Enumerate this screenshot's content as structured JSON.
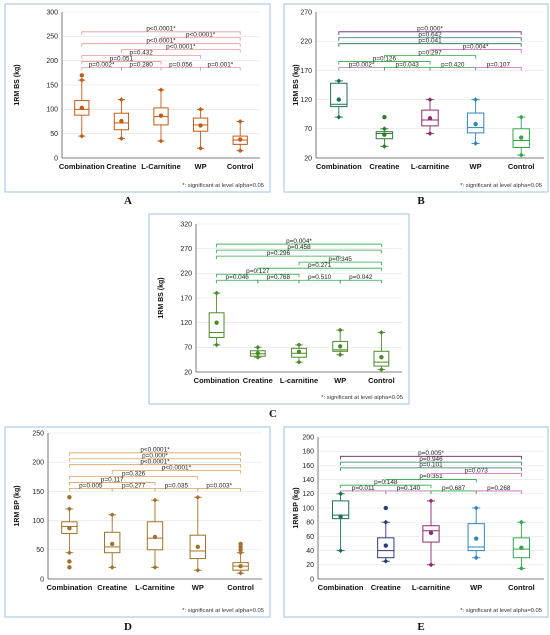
{
  "footnote": "*: significant at level alpha=0.05",
  "chart_data": [
    {
      "panel": "A",
      "type": "boxplot",
      "color": "#c55a11",
      "ylabel": "1RM BS (kg)",
      "ylim": [
        0,
        300
      ],
      "yticks": [
        0,
        50,
        100,
        150,
        200,
        250,
        300
      ],
      "grid": true,
      "categories": [
        "Combination",
        "Creatine",
        "L-Carnitine",
        "WP",
        "Control"
      ],
      "boxes": [
        {
          "min": 45,
          "q1": 88,
          "median": 100,
          "q3": 118,
          "max": 160,
          "mean": 103,
          "outliers": [
            170
          ]
        },
        {
          "min": 40,
          "q1": 58,
          "median": 72,
          "q3": 92,
          "max": 120,
          "mean": 76,
          "outliers": []
        },
        {
          "min": 35,
          "q1": 68,
          "median": 85,
          "q3": 103,
          "max": 140,
          "mean": 87,
          "outliers": []
        },
        {
          "min": 20,
          "q1": 55,
          "median": 68,
          "q3": 82,
          "max": 100,
          "mean": 67,
          "outliers": []
        },
        {
          "min": 15,
          "q1": 28,
          "median": 37,
          "q3": 45,
          "max": 75,
          "mean": 38,
          "outliers": []
        }
      ],
      "comparisons": [
        {
          "from": 0,
          "to": 1,
          "label": "p=0.002*",
          "color": "#e39a9a"
        },
        {
          "from": 1,
          "to": 2,
          "label": "p=0.280",
          "color": "#e39a9a"
        },
        {
          "from": 2,
          "to": 3,
          "label": "p=0.056",
          "color": "#e39a9a"
        },
        {
          "from": 3,
          "to": 4,
          "label": "p=0.001*",
          "color": "#e39a9a"
        },
        {
          "from": 0,
          "to": 2,
          "label": "p=0.051",
          "color": "#e39a9a"
        },
        {
          "from": 0,
          "to": 3,
          "label": "p=0.432",
          "color": "#e39a9a"
        },
        {
          "from": 1,
          "to": 4,
          "label": "p<0.0001*",
          "color": "#e39a9a"
        },
        {
          "from": 0,
          "to": 4,
          "label": "p<0.0001*",
          "color": "#e39a9a"
        },
        {
          "from": 2,
          "to": 4,
          "label": "p<0.0001*",
          "color": "#e39a9a"
        },
        {
          "from": 0,
          "to": 4,
          "label": "p<0.0001*",
          "color": "#e39a9a"
        }
      ]
    },
    {
      "panel": "B",
      "type": "boxplot",
      "ylabel": "1RM BS (kg)",
      "ylim": [
        20,
        270
      ],
      "yticks": [
        20,
        70,
        120,
        170,
        220,
        270
      ],
      "grid": true,
      "categories": [
        "Combination",
        "Creatine",
        "L-carnitine",
        "WP",
        "Control"
      ],
      "colors": [
        "#1f6f5c",
        "#2e7d32",
        "#8e2a6e",
        "#2e86c1",
        "#2ea84a"
      ],
      "boxes": [
        {
          "min": 90,
          "q1": 108,
          "median": 112,
          "q3": 148,
          "max": 152,
          "mean": 120,
          "outliers": []
        },
        {
          "min": 40,
          "q1": 53,
          "median": 62,
          "q3": 65,
          "max": 70,
          "mean": 60,
          "outliers": [
            90
          ]
        },
        {
          "min": 62,
          "q1": 75,
          "median": 85,
          "q3": 102,
          "max": 120,
          "mean": 88,
          "outliers": []
        },
        {
          "min": 45,
          "q1": 63,
          "median": 72,
          "q3": 97,
          "max": 120,
          "mean": 78,
          "outliers": []
        },
        {
          "min": 25,
          "q1": 38,
          "median": 50,
          "q3": 70,
          "max": 90,
          "mean": 55,
          "outliers": []
        }
      ],
      "comparisons": [
        {
          "from": 0,
          "to": 1,
          "label": "p=0.002*",
          "color": "#b07ab0"
        },
        {
          "from": 1,
          "to": 2,
          "label": "p=0.043",
          "color": "#2ea84a"
        },
        {
          "from": 2,
          "to": 3,
          "label": "p=0.420",
          "color": "#2ea84a"
        },
        {
          "from": 3,
          "to": 4,
          "label": "p=0.107",
          "color": "#d35fb7"
        },
        {
          "from": 0,
          "to": 2,
          "label": "p=0.126",
          "color": "#2ea84a"
        },
        {
          "from": 1,
          "to": 3,
          "label": "p=0.297",
          "color": "#2ea84a"
        },
        {
          "from": 2,
          "to": 4,
          "label": "p=0.004*",
          "color": "#d35fb7"
        },
        {
          "from": 0,
          "to": 4,
          "label": "p=0.041",
          "color": "#1f6f5c"
        },
        {
          "from": 0,
          "to": 4,
          "label": "p=0.642",
          "color": "#1f6f5c"
        },
        {
          "from": 0,
          "to": 4,
          "label": "p=0.000*",
          "color": "#6a1b6a"
        }
      ]
    },
    {
      "panel": "C",
      "type": "boxplot",
      "color": "#4e8a2a",
      "ylabel": "1RM BS (kg)",
      "ylim": [
        20,
        320
      ],
      "yticks": [
        20,
        70,
        120,
        170,
        220,
        270,
        320
      ],
      "grid": true,
      "categories": [
        "Combination",
        "Creatine",
        "L-carnitine",
        "WP",
        "Control"
      ],
      "boxes": [
        {
          "min": 75,
          "q1": 90,
          "median": 100,
          "q3": 140,
          "max": 180,
          "mean": 120,
          "outliers": []
        },
        {
          "min": 50,
          "q1": 52,
          "median": 57,
          "q3": 63,
          "max": 70,
          "mean": 58,
          "outliers": []
        },
        {
          "min": 40,
          "q1": 50,
          "median": 58,
          "q3": 68,
          "max": 75,
          "mean": 61,
          "outliers": []
        },
        {
          "min": 55,
          "q1": 62,
          "median": 65,
          "q3": 82,
          "max": 105,
          "mean": 72,
          "outliers": []
        },
        {
          "min": 25,
          "q1": 32,
          "median": 40,
          "q3": 62,
          "max": 100,
          "mean": 50,
          "outliers": []
        }
      ],
      "comparisons": [
        {
          "from": 0,
          "to": 1,
          "label": "p=0.046",
          "color": "#2ea84a"
        },
        {
          "from": 1,
          "to": 2,
          "label": "p=0.768",
          "color": "#2ea84a"
        },
        {
          "from": 2,
          "to": 3,
          "label": "p=0.510",
          "color": "#2ea84a"
        },
        {
          "from": 3,
          "to": 4,
          "label": "p=0.042",
          "color": "#2ea84a"
        },
        {
          "from": 0,
          "to": 2,
          "label": "p=0.127",
          "color": "#2ea84a"
        },
        {
          "from": 1,
          "to": 4,
          "label": "p=0.271",
          "color": "#2ea84a"
        },
        {
          "from": 2,
          "to": 4,
          "label": "p=0.345",
          "color": "#2ea84a"
        },
        {
          "from": 0,
          "to": 3,
          "label": "p=0.296",
          "color": "#2ea84a"
        },
        {
          "from": 0,
          "to": 4,
          "label": "p=0.458",
          "color": "#2ea84a"
        },
        {
          "from": 0,
          "to": 4,
          "label": "p=0.004*",
          "color": "#2ea84a"
        }
      ]
    },
    {
      "panel": "D",
      "type": "boxplot",
      "color": "#a0722a",
      "ylabel": "1RM BP (kg)",
      "ylim": [
        0,
        250
      ],
      "yticks": [
        0,
        50,
        100,
        150,
        200,
        250
      ],
      "grid": true,
      "categories": [
        "Combination",
        "Creatine",
        "L-Carnitine",
        "WP",
        "Control"
      ],
      "boxes": [
        {
          "min": 45,
          "q1": 78,
          "median": 90,
          "q3": 98,
          "max": 120,
          "mean": 87,
          "outliers": [
            20,
            30,
            140
          ]
        },
        {
          "min": 20,
          "q1": 45,
          "median": 55,
          "q3": 80,
          "max": 110,
          "mean": 60,
          "outliers": []
        },
        {
          "min": 20,
          "q1": 50,
          "median": 70,
          "q3": 98,
          "max": 135,
          "mean": 72,
          "outliers": []
        },
        {
          "min": 15,
          "q1": 35,
          "median": 48,
          "q3": 75,
          "max": 140,
          "mean": 55,
          "outliers": []
        },
        {
          "min": 10,
          "q1": 15,
          "median": 22,
          "q3": 28,
          "max": 45,
          "mean": 22,
          "outliers": [
            50,
            55,
            60
          ]
        }
      ],
      "comparisons": [
        {
          "from": 0,
          "to": 1,
          "label": "p=0.005",
          "color": "#d9a25f"
        },
        {
          "from": 1,
          "to": 2,
          "label": "p=0.277",
          "color": "#d9a25f"
        },
        {
          "from": 2,
          "to": 3,
          "label": "p=0.035",
          "color": "#d9a25f"
        },
        {
          "from": 3,
          "to": 4,
          "label": "p=0.003*",
          "color": "#d9a25f"
        },
        {
          "from": 0,
          "to": 2,
          "label": "p=0.117",
          "color": "#d9a25f"
        },
        {
          "from": 0,
          "to": 3,
          "label": "p=0.326",
          "color": "#d9a25f"
        },
        {
          "from": 1,
          "to": 4,
          "label": "p<0.0001*",
          "color": "#d9a25f"
        },
        {
          "from": 0,
          "to": 4,
          "label": "p<0.0001*",
          "color": "#d9a25f"
        },
        {
          "from": 0,
          "to": 4,
          "label": "p=0.000*",
          "color": "#d9a25f"
        },
        {
          "from": 0,
          "to": 4,
          "label": "p<0.0001*",
          "color": "#d9a25f"
        }
      ]
    },
    {
      "panel": "E",
      "type": "boxplot",
      "ylabel": "1RM BP (kg)",
      "ylim": [
        0,
        200
      ],
      "yticks": [
        0,
        20,
        40,
        60,
        80,
        100,
        120,
        140,
        160,
        180,
        200
      ],
      "grid": true,
      "categories": [
        "Combination",
        "Creatine",
        "L-carnitine",
        "WP",
        "Control"
      ],
      "colors": [
        "#1f6f5c",
        "#2e3a78",
        "#8e2a6e",
        "#2e86c1",
        "#2ea84a"
      ],
      "boxes": [
        {
          "min": 40,
          "q1": 85,
          "median": 90,
          "q3": 110,
          "max": 120,
          "mean": 88,
          "outliers": []
        },
        {
          "min": 25,
          "q1": 30,
          "median": 40,
          "q3": 58,
          "max": 80,
          "mean": 47,
          "outliers": [
            100
          ]
        },
        {
          "min": 20,
          "q1": 52,
          "median": 68,
          "q3": 75,
          "max": 110,
          "mean": 65,
          "outliers": []
        },
        {
          "min": 30,
          "q1": 40,
          "median": 45,
          "q3": 78,
          "max": 100,
          "mean": 57,
          "outliers": []
        },
        {
          "min": 15,
          "q1": 30,
          "median": 42,
          "q3": 58,
          "max": 80,
          "mean": 44,
          "outliers": []
        }
      ],
      "comparisons": [
        {
          "from": 0,
          "to": 1,
          "label": "p=0.011",
          "color": "#b07ab0"
        },
        {
          "from": 1,
          "to": 2,
          "label": "p=0.140",
          "color": "#b07ab0"
        },
        {
          "from": 2,
          "to": 3,
          "label": "p=0.687",
          "color": "#2ea84a"
        },
        {
          "from": 3,
          "to": 4,
          "label": "p=0.268",
          "color": "#d35fb7"
        },
        {
          "from": 0,
          "to": 2,
          "label": "p=0.148",
          "color": "#2ea84a"
        },
        {
          "from": 1,
          "to": 3,
          "label": "p=0.351",
          "color": "#2ea84a"
        },
        {
          "from": 2,
          "to": 4,
          "label": "p=0.073",
          "color": "#d35fb7"
        },
        {
          "from": 0,
          "to": 4,
          "label": "p=0.101",
          "color": "#1f6f5c"
        },
        {
          "from": 0,
          "to": 4,
          "label": "p=0.946",
          "color": "#1f6f5c"
        },
        {
          "from": 0,
          "to": 4,
          "label": "p=0.005*",
          "color": "#6a1b6a"
        }
      ]
    }
  ]
}
